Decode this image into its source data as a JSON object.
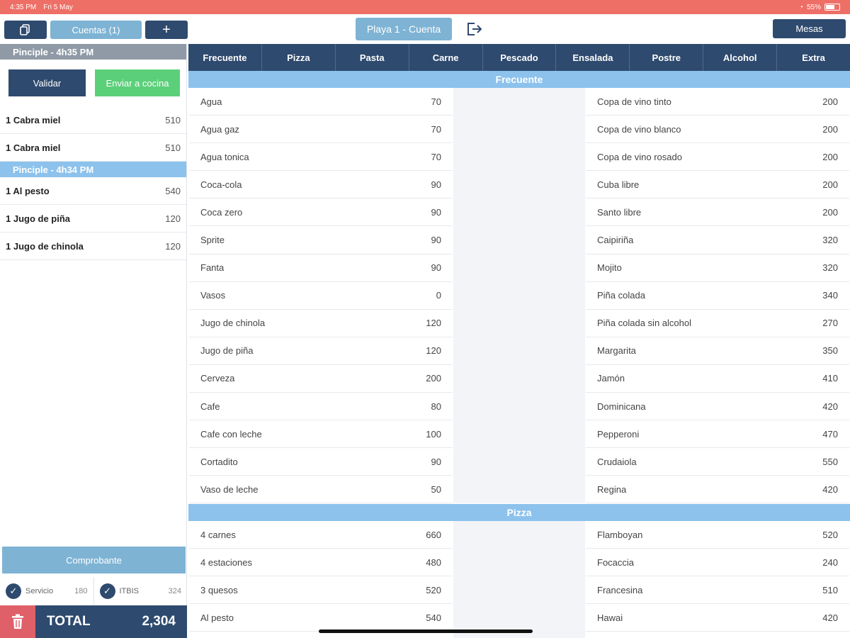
{
  "status": {
    "time": "4:35 PM",
    "date": "Fri 5 May",
    "battery": "55%"
  },
  "topbar": {
    "cuentas_label": "Cuentas (1)",
    "add_label": "+",
    "table_label": "Playa 1 - Cuenta",
    "mesas_label": "Mesas"
  },
  "left": {
    "group1_header": "Pinciple - 4h35 PM",
    "validar_label": "Validar",
    "enviar_label": "Enviar a cocina",
    "group1_items": [
      {
        "name": "1 Cabra miel",
        "price": "510"
      },
      {
        "name": "1 Cabra miel",
        "price": "510"
      }
    ],
    "group2_header": "Pinciple - 4h34 PM",
    "group2_items": [
      {
        "name": "1 Al pesto",
        "price": "540"
      },
      {
        "name": "1 Jugo de piña",
        "price": "120"
      },
      {
        "name": "1 Jugo de chinola",
        "price": "120"
      }
    ],
    "comprobante_label": "Comprobante",
    "servicio_label": "Servicio",
    "servicio_value": "180",
    "itbis_label": "ITBIS",
    "itbis_value": "324",
    "total_label": "TOTAL",
    "total_value": "2,304"
  },
  "categories": [
    "Frecuente",
    "Pizza",
    "Pasta",
    "Carne",
    "Pescado",
    "Ensalada",
    "Postre",
    "Alcohol",
    "Extra"
  ],
  "sections": {
    "frecuente_title": "Frecuente",
    "frecuente_left": [
      {
        "name": "Agua",
        "price": "70"
      },
      {
        "name": "Agua gaz",
        "price": "70"
      },
      {
        "name": "Agua tonica",
        "price": "70"
      },
      {
        "name": "Coca-cola",
        "price": "90"
      },
      {
        "name": "Coca zero",
        "price": "90"
      },
      {
        "name": "Sprite",
        "price": "90"
      },
      {
        "name": "Fanta",
        "price": "90"
      },
      {
        "name": "Vasos",
        "price": "0"
      },
      {
        "name": "Jugo de chinola",
        "price": "120"
      },
      {
        "name": "Jugo de piña",
        "price": "120"
      },
      {
        "name": "Cerveza",
        "price": "200"
      },
      {
        "name": "Cafe",
        "price": "80"
      },
      {
        "name": "Cafe con leche",
        "price": "100"
      },
      {
        "name": "Cortadito",
        "price": "90"
      },
      {
        "name": "Vaso de leche",
        "price": "50"
      }
    ],
    "frecuente_right": [
      {
        "name": "Copa de vino tinto",
        "price": "200"
      },
      {
        "name": "Copa de vino blanco",
        "price": "200"
      },
      {
        "name": "Copa de vino rosado",
        "price": "200"
      },
      {
        "name": "Cuba libre",
        "price": "200"
      },
      {
        "name": "Santo libre",
        "price": "200"
      },
      {
        "name": "Caipiriña",
        "price": "320"
      },
      {
        "name": "Mojito",
        "price": "320"
      },
      {
        "name": "Piña colada",
        "price": "340"
      },
      {
        "name": "Piña colada sin alcohol",
        "price": "270"
      },
      {
        "name": "Margarita",
        "price": "350"
      },
      {
        "name": "Jamón",
        "price": "410"
      },
      {
        "name": "Dominicana",
        "price": "420"
      },
      {
        "name": "Pepperoni",
        "price": "470"
      },
      {
        "name": "Crudaiola",
        "price": "550"
      },
      {
        "name": "Regina",
        "price": "420"
      }
    ],
    "pizza_title": "Pizza",
    "pizza_left": [
      {
        "name": "4 carnes",
        "price": "660"
      },
      {
        "name": "4 estaciones",
        "price": "480"
      },
      {
        "name": "3 quesos",
        "price": "520"
      },
      {
        "name": "Al pesto",
        "price": "540"
      }
    ],
    "pizza_right": [
      {
        "name": "Flamboyan",
        "price": "520"
      },
      {
        "name": "Focaccia",
        "price": "240"
      },
      {
        "name": "Francesina",
        "price": "510"
      },
      {
        "name": "Hawai",
        "price": "420"
      }
    ]
  },
  "colors": {
    "navy": "#2e4a6e",
    "light_blue": "#7eb3d4",
    "header_blue": "#8cc2ec",
    "green": "#5ccf7a",
    "red": "#e0606a",
    "status_red": "#ee6f66"
  }
}
